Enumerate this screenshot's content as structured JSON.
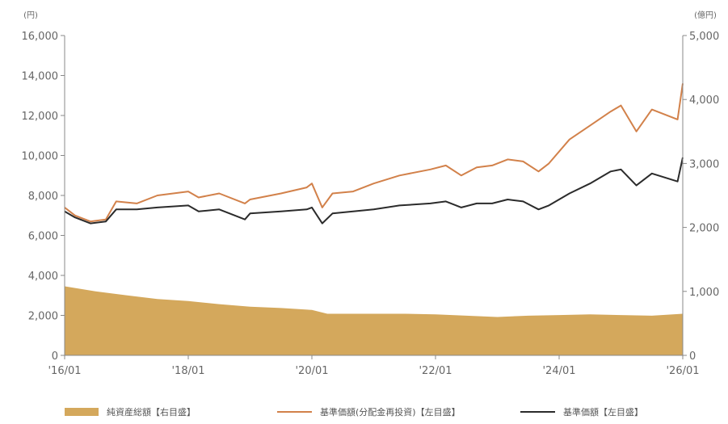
{
  "chart_data": {
    "type": "line",
    "left_axis_unit": "(円)",
    "right_axis_unit": "(億円)",
    "left_ylim": [
      0,
      16000
    ],
    "right_ylim": [
      0,
      5000
    ],
    "left_ticks": [
      "0",
      "2,000",
      "4,000",
      "6,000",
      "8,000",
      "10,000",
      "12,000",
      "14,000",
      "16,000"
    ],
    "right_ticks": [
      "0",
      "1,000",
      "2,000",
      "3,000",
      "4,000",
      "5,000"
    ],
    "x_ticks": [
      "'16/01",
      "'18/01",
      "'20/01",
      "'22/01",
      "'24/01",
      "'26/01"
    ],
    "x_range": [
      "2016-01",
      "2026-01"
    ],
    "grid": false,
    "legend_position": "bottom",
    "series": [
      {
        "name": "純資産総額【右目盛】",
        "kind": "area",
        "axis": "right",
        "color": "#d4a85c",
        "points": [
          [
            "2016-01",
            1080
          ],
          [
            "2016-07",
            1000
          ],
          [
            "2017-01",
            940
          ],
          [
            "2017-07",
            880
          ],
          [
            "2018-01",
            850
          ],
          [
            "2018-07",
            800
          ],
          [
            "2019-01",
            760
          ],
          [
            "2019-07",
            740
          ],
          [
            "2020-01",
            710
          ],
          [
            "2020-04",
            650
          ],
          [
            "2020-07",
            650
          ],
          [
            "2021-01",
            650
          ],
          [
            "2021-07",
            650
          ],
          [
            "2022-01",
            640
          ],
          [
            "2022-07",
            620
          ],
          [
            "2023-01",
            600
          ],
          [
            "2023-07",
            620
          ],
          [
            "2024-01",
            630
          ],
          [
            "2024-07",
            640
          ],
          [
            "2025-01",
            630
          ],
          [
            "2025-07",
            620
          ],
          [
            "2026-01",
            650
          ]
        ]
      },
      {
        "name": "基準価額(分配金再投資)【左目盛】",
        "kind": "line",
        "axis": "left",
        "color": "#d2814a",
        "points": [
          [
            "2016-01",
            7400
          ],
          [
            "2016-03",
            7000
          ],
          [
            "2016-06",
            6700
          ],
          [
            "2016-09",
            6800
          ],
          [
            "2016-11",
            7700
          ],
          [
            "2017-03",
            7600
          ],
          [
            "2017-07",
            8000
          ],
          [
            "2018-01",
            8200
          ],
          [
            "2018-03",
            7900
          ],
          [
            "2018-07",
            8100
          ],
          [
            "2018-12",
            7600
          ],
          [
            "2019-01",
            7800
          ],
          [
            "2019-07",
            8100
          ],
          [
            "2019-12",
            8400
          ],
          [
            "2020-01",
            8600
          ],
          [
            "2020-03",
            7400
          ],
          [
            "2020-05",
            8100
          ],
          [
            "2020-09",
            8200
          ],
          [
            "2021-01",
            8600
          ],
          [
            "2021-06",
            9000
          ],
          [
            "2021-12",
            9300
          ],
          [
            "2022-03",
            9500
          ],
          [
            "2022-06",
            9000
          ],
          [
            "2022-09",
            9400
          ],
          [
            "2022-12",
            9500
          ],
          [
            "2023-03",
            9800
          ],
          [
            "2023-06",
            9700
          ],
          [
            "2023-09",
            9200
          ],
          [
            "2023-11",
            9600
          ],
          [
            "2024-03",
            10800
          ],
          [
            "2024-07",
            11500
          ],
          [
            "2024-11",
            12200
          ],
          [
            "2025-01",
            12500
          ],
          [
            "2025-04",
            11200
          ],
          [
            "2025-07",
            12300
          ],
          [
            "2025-12",
            11800
          ],
          [
            "2026-01",
            13600
          ]
        ]
      },
      {
        "name": "基準価額【左目盛】",
        "kind": "line",
        "axis": "left",
        "color": "#2b2b2b",
        "points": [
          [
            "2016-01",
            7200
          ],
          [
            "2016-03",
            6900
          ],
          [
            "2016-06",
            6600
          ],
          [
            "2016-09",
            6700
          ],
          [
            "2016-11",
            7300
          ],
          [
            "2017-03",
            7300
          ],
          [
            "2017-07",
            7400
          ],
          [
            "2018-01",
            7500
          ],
          [
            "2018-03",
            7200
          ],
          [
            "2018-07",
            7300
          ],
          [
            "2018-12",
            6800
          ],
          [
            "2019-01",
            7100
          ],
          [
            "2019-07",
            7200
          ],
          [
            "2019-12",
            7300
          ],
          [
            "2020-01",
            7400
          ],
          [
            "2020-03",
            6600
          ],
          [
            "2020-05",
            7100
          ],
          [
            "2020-09",
            7200
          ],
          [
            "2021-01",
            7300
          ],
          [
            "2021-06",
            7500
          ],
          [
            "2021-12",
            7600
          ],
          [
            "2022-03",
            7700
          ],
          [
            "2022-06",
            7400
          ],
          [
            "2022-09",
            7600
          ],
          [
            "2022-12",
            7600
          ],
          [
            "2023-03",
            7800
          ],
          [
            "2023-06",
            7700
          ],
          [
            "2023-09",
            7300
          ],
          [
            "2023-11",
            7500
          ],
          [
            "2024-03",
            8100
          ],
          [
            "2024-07",
            8600
          ],
          [
            "2024-11",
            9200
          ],
          [
            "2025-01",
            9300
          ],
          [
            "2025-04",
            8500
          ],
          [
            "2025-07",
            9100
          ],
          [
            "2025-12",
            8700
          ],
          [
            "2026-01",
            9900
          ]
        ]
      }
    ]
  }
}
